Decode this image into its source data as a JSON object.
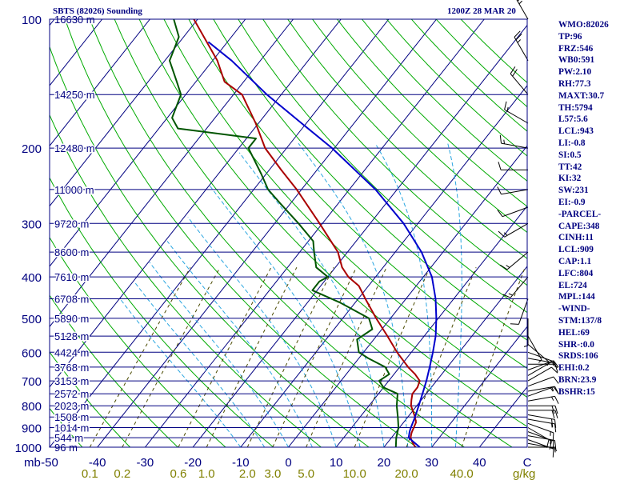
{
  "header": {
    "title": "SBTS (82026) Sounding",
    "time": "1200Z 28 MAR 20"
  },
  "chart_data": {
    "type": "line",
    "subtype": "skew-t",
    "pressure_axis": {
      "unit_label": "mb",
      "ticks": [
        100,
        200,
        300,
        400,
        500,
        600,
        700,
        800,
        900,
        1000
      ],
      "range": [
        100,
        1000
      ],
      "scale": "log"
    },
    "temperature_axis": {
      "ticks": [
        "-50",
        "-40",
        "-30",
        "-20",
        "-10",
        "0",
        "10",
        "20",
        "30",
        "40",
        "C"
      ],
      "range": [
        -50,
        50
      ]
    },
    "mixing_ratio_axis": {
      "unit_label": "g/kg",
      "ticks": [
        "0.1",
        "0.2",
        "0.6",
        "1.0",
        "2.0",
        "3.0",
        "5.0",
        "10.0",
        "20.0",
        "40.0"
      ],
      "values": [
        0.1,
        0.2,
        0.6,
        1.0,
        2.0,
        3.0,
        5.0,
        10.0,
        20.0,
        40.0
      ]
    },
    "height_levels": [
      {
        "p": 100,
        "label": "16630 m"
      },
      {
        "p": 150,
        "label": "14250 m"
      },
      {
        "p": 200,
        "label": "12480 m"
      },
      {
        "p": 250,
        "label": "11000 m"
      },
      {
        "p": 300,
        "label": "9720 m"
      },
      {
        "p": 350,
        "label": "8600 m"
      },
      {
        "p": 400,
        "label": "7610 m"
      },
      {
        "p": 450,
        "label": "6708 m"
      },
      {
        "p": 500,
        "label": "5890 m"
      },
      {
        "p": 550,
        "label": "5128 m"
      },
      {
        "p": 600,
        "label": "4424 m"
      },
      {
        "p": 650,
        "label": "3768 m"
      },
      {
        "p": 700,
        "label": "3153 m"
      },
      {
        "p": 750,
        "label": "2572 m"
      },
      {
        "p": 800,
        "label": "2023 m"
      },
      {
        "p": 850,
        "label": "1508 m"
      },
      {
        "p": 900,
        "label": "1014 m"
      },
      {
        "p": 950,
        "label": "544 m"
      },
      {
        "p": 1000,
        "label": "96 m"
      }
    ],
    "skew_deg_per_decade": 71,
    "dry_adiabats_theta_k": [
      230,
      240,
      250,
      260,
      270,
      280,
      290,
      300,
      310,
      320,
      330,
      340,
      350,
      360,
      370,
      380,
      390,
      400,
      410,
      420,
      430,
      440,
      450,
      460
    ],
    "moist_adiabats_c": [
      -10,
      -5,
      0,
      5,
      10,
      15,
      20,
      25,
      30,
      35
    ],
    "series": [
      {
        "color": "#aa0000",
        "points": [
          {
            "p": 1000,
            "t": 26.6
          },
          {
            "p": 975,
            "t": 25.2
          },
          {
            "p": 950,
            "t": 24.0
          },
          {
            "p": 925,
            "t": 23.4
          },
          {
            "p": 900,
            "t": 23.0
          },
          {
            "p": 875,
            "t": 22.6
          },
          {
            "p": 850,
            "t": 21.5
          },
          {
            "p": 800,
            "t": 18.8
          },
          {
            "p": 775,
            "t": 17.9
          },
          {
            "p": 750,
            "t": 17.1
          },
          {
            "p": 725,
            "t": 17.1
          },
          {
            "p": 700,
            "t": 16.5
          },
          {
            "p": 675,
            "t": 14.4
          },
          {
            "p": 650,
            "t": 11.8
          },
          {
            "p": 600,
            "t": 7.0
          },
          {
            "p": 550,
            "t": 2.3
          },
          {
            "p": 500,
            "t": -3.0
          },
          {
            "p": 450,
            "t": -8.5
          },
          {
            "p": 420,
            "t": -12.0
          },
          {
            "p": 400,
            "t": -15.7
          },
          {
            "p": 380,
            "t": -18.6
          },
          {
            "p": 350,
            "t": -22.0
          },
          {
            "p": 300,
            "t": -30.6
          },
          {
            "p": 250,
            "t": -41.0
          },
          {
            "p": 225,
            "t": -47.5
          },
          {
            "p": 200,
            "t": -54.5
          },
          {
            "p": 175,
            "t": -60.6
          },
          {
            "p": 150,
            "t": -68.2
          },
          {
            "p": 140,
            "t": -74.0
          },
          {
            "p": 125,
            "t": -79.0
          },
          {
            "p": 100,
            "t": -90.8
          }
        ]
      },
      {
        "color": "#005500",
        "points": [
          {
            "p": 1000,
            "t": 22.5
          },
          {
            "p": 950,
            "t": 21.0
          },
          {
            "p": 900,
            "t": 19.8
          },
          {
            "p": 850,
            "t": 17.9
          },
          {
            "p": 800,
            "t": 15.8
          },
          {
            "p": 750,
            "t": 14.0
          },
          {
            "p": 725,
            "t": 10.0
          },
          {
            "p": 700,
            "t": 8.0
          },
          {
            "p": 675,
            "t": 9.0
          },
          {
            "p": 650,
            "t": 7.0
          },
          {
            "p": 620,
            "t": 2.0
          },
          {
            "p": 600,
            "t": -1.0
          },
          {
            "p": 560,
            "t": -3.5
          },
          {
            "p": 530,
            "t": -2.0
          },
          {
            "p": 500,
            "t": -4.5
          },
          {
            "p": 460,
            "t": -13.0
          },
          {
            "p": 430,
            "t": -21.0
          },
          {
            "p": 410,
            "t": -21.0
          },
          {
            "p": 400,
            "t": -20.0
          },
          {
            "p": 380,
            "t": -24.0
          },
          {
            "p": 350,
            "t": -27.0
          },
          {
            "p": 330,
            "t": -29.0
          },
          {
            "p": 300,
            "t": -35.0
          },
          {
            "p": 270,
            "t": -42.0
          },
          {
            "p": 250,
            "t": -47.0
          },
          {
            "p": 230,
            "t": -51.0
          },
          {
            "p": 200,
            "t": -58.0
          },
          {
            "p": 190,
            "t": -58.0
          },
          {
            "p": 180,
            "t": -76.0
          },
          {
            "p": 170,
            "t": -79.0
          },
          {
            "p": 150,
            "t": -81.0
          },
          {
            "p": 140,
            "t": -84.0
          },
          {
            "p": 125,
            "t": -89.0
          },
          {
            "p": 110,
            "t": -91.0
          },
          {
            "p": 100,
            "t": -95.0
          }
        ]
      },
      {
        "color": "#0000cc",
        "points": [
          {
            "p": 1000,
            "t": 27.5
          },
          {
            "p": 950,
            "t": 23.6
          },
          {
            "p": 920,
            "t": 22.8
          },
          {
            "p": 900,
            "t": 22.4
          },
          {
            "p": 850,
            "t": 21.5
          },
          {
            "p": 800,
            "t": 20.4
          },
          {
            "p": 750,
            "t": 19.2
          },
          {
            "p": 700,
            "t": 17.9
          },
          {
            "p": 650,
            "t": 16.3
          },
          {
            "p": 600,
            "t": 14.5
          },
          {
            "p": 550,
            "t": 12.4
          },
          {
            "p": 500,
            "t": 9.6
          },
          {
            "p": 450,
            "t": 6.2
          },
          {
            "p": 400,
            "t": 1.8
          },
          {
            "p": 350,
            "t": -4.5
          },
          {
            "p": 300,
            "t": -13.0
          },
          {
            "p": 250,
            "t": -24.5
          },
          {
            "p": 200,
            "t": -40.5
          },
          {
            "p": 175,
            "t": -51.0
          },
          {
            "p": 150,
            "t": -63.0
          },
          {
            "p": 125,
            "t": -76.0
          },
          {
            "p": 113,
            "t": -84.0
          }
        ]
      }
    ],
    "wind_barbs": [
      {
        "p": 1000,
        "dir": 90,
        "spd": 5
      },
      {
        "p": 980,
        "dir": 100,
        "spd": 5
      },
      {
        "p": 960,
        "dir": 110,
        "spd": 10
      },
      {
        "p": 940,
        "dir": 100,
        "spd": 10
      },
      {
        "p": 920,
        "dir": 110,
        "spd": 15
      },
      {
        "p": 900,
        "dir": 120,
        "spd": 20
      },
      {
        "p": 880,
        "dir": 110,
        "spd": 15
      },
      {
        "p": 860,
        "dir": 100,
        "spd": 15
      },
      {
        "p": 840,
        "dir": 100,
        "spd": 20
      },
      {
        "p": 820,
        "dir": 90,
        "spd": 20
      },
      {
        "p": 800,
        "dir": 90,
        "spd": 20
      },
      {
        "p": 780,
        "dir": 80,
        "spd": 15
      },
      {
        "p": 760,
        "dir": 70,
        "spd": 15
      },
      {
        "p": 740,
        "dir": 80,
        "spd": 15
      },
      {
        "p": 720,
        "dir": 70,
        "spd": 10
      },
      {
        "p": 700,
        "dir": 60,
        "spd": 10
      },
      {
        "p": 680,
        "dir": 60,
        "spd": 10
      },
      {
        "p": 660,
        "dir": 70,
        "spd": 10
      },
      {
        "p": 640,
        "dir": 90,
        "spd": 10
      },
      {
        "p": 620,
        "dir": 100,
        "spd": 5
      },
      {
        "p": 600,
        "dir": 110,
        "spd": 5
      },
      {
        "p": 575,
        "dir": 130,
        "spd": 5
      },
      {
        "p": 550,
        "dir": 150,
        "spd": 5
      },
      {
        "p": 500,
        "dir": 180,
        "spd": 5
      },
      {
        "p": 450,
        "dir": 200,
        "spd": 10
      },
      {
        "p": 400,
        "dir": 220,
        "spd": 15
      },
      {
        "p": 350,
        "dir": 230,
        "spd": 15
      },
      {
        "p": 300,
        "dir": 240,
        "spd": 15
      },
      {
        "p": 275,
        "dir": 250,
        "spd": 10
      },
      {
        "p": 250,
        "dir": 260,
        "spd": 10
      },
      {
        "p": 225,
        "dir": 270,
        "spd": 10
      },
      {
        "p": 200,
        "dir": 280,
        "spd": 15
      },
      {
        "p": 175,
        "dir": 300,
        "spd": 15
      },
      {
        "p": 150,
        "dir": 320,
        "spd": 20
      },
      {
        "p": 125,
        "dir": 330,
        "spd": 25
      },
      {
        "p": 100,
        "dir": 330,
        "spd": 35
      }
    ]
  },
  "indices": [
    "WMO:82026",
    "TP:96",
    "FRZ:546",
    "WB0:591",
    "PW:2.10",
    "RH:77.3",
    "MAXT:30.7",
    "TH:5794",
    "L57:5.6",
    "LCL:943",
    "LI:-0.8",
    "SI:0.5",
    "TT:42",
    "KI:32",
    "SW:231",
    "EI:-0.9",
    "-PARCEL-",
    "CAPE:348",
    "CINH:11",
    "LCL:909",
    "CAP:1.1",
    "LFC:804",
    "EL:724",
    "MPL:144",
    "-WIND-",
    "STM:137/8",
    "HEL:69",
    "SHR-:0.0",
    "SRDS:106",
    "EHI:0.2",
    "BRN:23.9",
    "BSHR:15"
  ],
  "colors": {
    "frame": "#000080",
    "text": "#000080",
    "isobar": "#000080",
    "isotherm": "#000080",
    "dry_adiabat": "#00aa00",
    "moist_adiabat": "#2aa6e0",
    "mixing_ratio": "#4a4a00",
    "mixing_ratio_label": "#808000",
    "temperature": "#aa0000",
    "dewpoint": "#005500",
    "parcel": "#0000cc",
    "barbs": "#000000"
  }
}
